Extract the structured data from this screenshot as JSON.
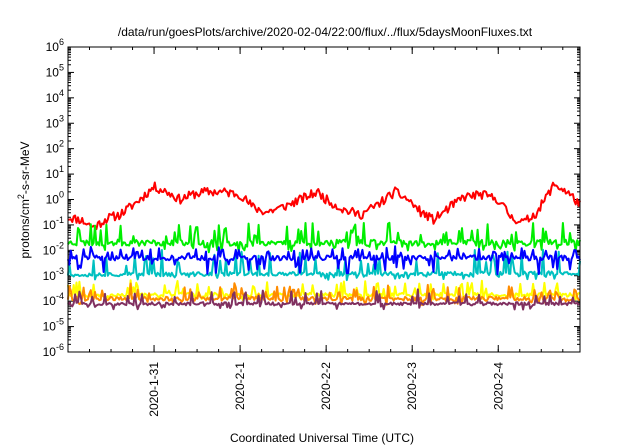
{
  "chart_data": {
    "type": "line",
    "title": "/data/run/goesPlots/archive/2020-02-04/22:00/flux/../flux/5daysMoonFluxes.txt",
    "xlabel": "Coordinated Universal Time (UTC)",
    "ylabel": {
      "prefix": "protons/cm",
      "sup": "2",
      "suffix": "-s-sr-MeV"
    },
    "y_scale": "log",
    "ylim_exp": [
      -6,
      6
    ],
    "ytick_base": "10",
    "ytick_exps": [
      -6,
      -5,
      -4,
      -3,
      -2,
      -1,
      0,
      1,
      2,
      3,
      4,
      5,
      6
    ],
    "xlim_days": [
      0,
      5.95
    ],
    "x_ticks": [
      {
        "label": "2020-1-31",
        "day": 1
      },
      {
        "label": "2020-2-1",
        "day": 2
      },
      {
        "label": "2020-2-2",
        "day": 3
      },
      {
        "label": "2020-2-3",
        "day": 4
      },
      {
        "label": "2020-2-4",
        "day": 5
      }
    ],
    "series": [
      {
        "color": "#ff0000",
        "base": [
          [
            0,
            -0.7
          ],
          [
            0.15,
            -0.8
          ],
          [
            0.3,
            -1.1
          ],
          [
            0.45,
            -0.75
          ],
          [
            0.6,
            -0.6
          ],
          [
            0.8,
            -0.1
          ],
          [
            1.0,
            0.5
          ],
          [
            1.15,
            0.3
          ],
          [
            1.3,
            0.0
          ],
          [
            1.45,
            0.2
          ],
          [
            1.6,
            0.3
          ],
          [
            1.8,
            0.3
          ],
          [
            2.0,
            0.2
          ],
          [
            2.15,
            -0.3
          ],
          [
            2.3,
            -0.5
          ],
          [
            2.5,
            -0.3
          ],
          [
            2.7,
            0.0
          ],
          [
            2.9,
            0.3
          ],
          [
            3.0,
            0.0
          ],
          [
            3.2,
            -0.4
          ],
          [
            3.4,
            -0.6
          ],
          [
            3.6,
            -0.2
          ],
          [
            3.8,
            0.3
          ],
          [
            3.95,
            0.0
          ],
          [
            4.1,
            -0.5
          ],
          [
            4.25,
            -0.8
          ],
          [
            4.4,
            -0.4
          ],
          [
            4.6,
            0.1
          ],
          [
            4.8,
            0.2
          ],
          [
            5.0,
            0.0
          ],
          [
            5.15,
            -0.7
          ],
          [
            5.3,
            -0.9
          ],
          [
            5.45,
            -0.5
          ],
          [
            5.65,
            0.6
          ],
          [
            5.8,
            0.3
          ],
          [
            5.95,
            -0.2
          ]
        ],
        "noise": 0.18,
        "spike_prob": 0,
        "spike_up": 0,
        "spike_down": 0,
        "seed": 11
      },
      {
        "color": "#00ee00",
        "base": [
          [
            0,
            -1.7
          ],
          [
            5.95,
            -1.7
          ]
        ],
        "noise": 0.12,
        "spike_prob": 0.25,
        "spike_up": 0.8,
        "spike_down": 0.3,
        "seed": 23
      },
      {
        "color": "#00c0c0",
        "base": [
          [
            0,
            -2.95
          ],
          [
            5.95,
            -2.9
          ]
        ],
        "noise": 0.08,
        "spike_prob": 0.22,
        "spike_up": 0.9,
        "spike_down": 0.2,
        "seed": 37
      },
      {
        "color": "#0000ff",
        "base": [
          [
            0,
            -2.3
          ],
          [
            5.95,
            -2.3
          ]
        ],
        "noise": 0.1,
        "spike_prob": 0.25,
        "spike_up": 0.4,
        "spike_down": 0.6,
        "seed": 41
      },
      {
        "color": "#ffff00",
        "base": [
          [
            0,
            -3.75
          ],
          [
            5.95,
            -3.75
          ]
        ],
        "noise": 0.08,
        "spike_prob": 0.18,
        "spike_up": 0.55,
        "spike_down": 0.2,
        "seed": 53
      },
      {
        "color": "#ff8c00",
        "base": [
          [
            0,
            -3.9
          ],
          [
            5.95,
            -3.9
          ]
        ],
        "noise": 0.08,
        "spike_prob": 0.18,
        "spike_up": 0.55,
        "spike_down": 0.2,
        "seed": 67
      },
      {
        "color": "#803060",
        "base": [
          [
            0,
            -4.1
          ],
          [
            5.95,
            -4.1
          ]
        ],
        "noise": 0.06,
        "spike_prob": 0.18,
        "spike_up": 0.55,
        "spike_down": 0.2,
        "seed": 79
      }
    ]
  }
}
